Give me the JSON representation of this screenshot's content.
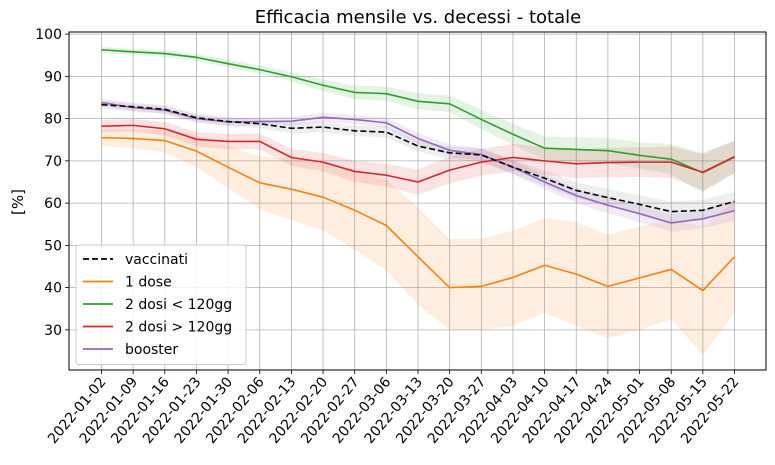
{
  "chart_data": {
    "type": "line",
    "title": "Efficacia mensile vs. decessi - totale",
    "xlabel": "",
    "ylabel": "[%]",
    "ylim": [
      20.5,
      100.5
    ],
    "yticks": [
      30,
      40,
      50,
      60,
      70,
      80,
      90,
      100
    ],
    "grid": true,
    "legend_position": "lower-left",
    "categories": [
      "2022-01-02",
      "2022-01-09",
      "2022-01-16",
      "2022-01-23",
      "2022-01-30",
      "2022-02-06",
      "2022-02-13",
      "2022-02-20",
      "2022-02-27",
      "2022-03-06",
      "2022-03-13",
      "2022-03-20",
      "2022-03-27",
      "2022-04-03",
      "2022-04-10",
      "2022-04-17",
      "2022-04-24",
      "2022-05-01",
      "2022-05-08",
      "2022-05-15",
      "2022-05-22"
    ],
    "series": [
      {
        "name": "vaccinati",
        "color": "#000000",
        "dash": "dashed",
        "band_color": "#7f7f7f",
        "values": [
          83.3,
          82.8,
          82.2,
          80.2,
          79.3,
          78.8,
          77.7,
          78.0,
          77.1,
          76.8,
          73.5,
          71.9,
          71.4,
          68.5,
          65.9,
          63.0,
          61.3,
          59.7,
          58.0,
          58.3,
          60.4
        ],
        "lower": [
          82.3,
          81.8,
          81.2,
          79.2,
          78.2,
          77.7,
          76.5,
          76.8,
          75.9,
          75.5,
          72.2,
          70.4,
          69.8,
          66.8,
          64.1,
          61.1,
          59.3,
          57.6,
          55.6,
          55.8,
          58.1
        ],
        "upper": [
          84.3,
          83.8,
          83.2,
          81.2,
          80.4,
          79.9,
          78.9,
          79.2,
          78.3,
          78.1,
          74.8,
          73.4,
          73.0,
          70.2,
          67.7,
          64.9,
          63.3,
          61.8,
          60.4,
          60.8,
          62.7
        ]
      },
      {
        "name": "1 dose",
        "color": "#ff7f0e",
        "dash": "solid",
        "band_color": "#ff7f0e",
        "values": [
          75.5,
          75.3,
          74.8,
          72.3,
          68.5,
          64.8,
          63.3,
          61.4,
          58.3,
          54.7,
          47.3,
          40.0,
          40.3,
          42.4,
          45.3,
          43.2,
          40.3,
          42.3,
          44.3,
          39.3,
          47.3
        ],
        "lower": [
          73.5,
          73.0,
          72.0,
          68.5,
          63.5,
          58.5,
          56.0,
          53.5,
          49.0,
          44.0,
          36.0,
          30.0,
          30.0,
          31.0,
          34.0,
          31.0,
          28.0,
          30.0,
          32.5,
          24.0,
          34.0
        ],
        "upper": [
          77.5,
          77.5,
          77.5,
          76.0,
          73.5,
          71.0,
          70.5,
          69.5,
          67.5,
          65.5,
          59.0,
          51.5,
          51.5,
          53.5,
          56.5,
          55.5,
          52.5,
          54.5,
          56.0,
          54.5,
          60.5
        ]
      },
      {
        "name": "2 dosi < 120gg",
        "color": "#2ca02c",
        "dash": "solid",
        "band_color": "#2ca02c",
        "values": [
          96.3,
          95.8,
          95.4,
          94.5,
          93.0,
          91.6,
          89.9,
          87.9,
          86.2,
          85.9,
          84.1,
          83.5,
          79.8,
          76.3,
          73.0,
          72.7,
          72.4,
          71.3,
          70.4,
          67.2,
          70.9
        ],
        "lower": [
          95.6,
          95.1,
          94.6,
          93.7,
          92.1,
          90.6,
          88.8,
          86.5,
          84.6,
          84.2,
          82.2,
          81.5,
          77.5,
          73.8,
          70.2,
          69.8,
          69.4,
          68.2,
          66.8,
          62.5,
          67.0
        ],
        "upper": [
          97.0,
          96.5,
          96.2,
          95.3,
          93.9,
          92.6,
          91.0,
          89.3,
          87.8,
          87.6,
          86.0,
          85.5,
          82.1,
          78.8,
          75.8,
          75.6,
          75.4,
          74.4,
          74.0,
          71.9,
          74.8
        ]
      },
      {
        "name": "2 dosi > 120gg",
        "color": "#d62728",
        "dash": "solid",
        "band_color": "#d62728",
        "values": [
          78.2,
          78.4,
          77.6,
          75.1,
          74.6,
          74.6,
          70.8,
          69.7,
          67.5,
          66.6,
          65.0,
          67.8,
          69.7,
          70.8,
          70.0,
          69.3,
          69.6,
          69.7,
          69.7,
          67.3,
          71.0
        ],
        "lower": [
          76.7,
          76.9,
          76.0,
          73.4,
          72.8,
          72.7,
          68.8,
          67.5,
          65.0,
          63.9,
          62.0,
          64.6,
          66.5,
          67.6,
          66.7,
          65.9,
          66.1,
          66.2,
          66.0,
          63.0,
          67.2
        ],
        "upper": [
          79.7,
          79.9,
          79.2,
          76.8,
          76.4,
          76.5,
          72.8,
          71.9,
          70.0,
          69.3,
          68.0,
          71.0,
          72.9,
          74.0,
          73.3,
          72.7,
          73.1,
          73.2,
          73.4,
          71.6,
          74.8
        ]
      },
      {
        "name": "booster",
        "color": "#9467bd",
        "dash": "solid",
        "band_color": "#9467bd",
        "values": [
          83.8,
          82.6,
          82.0,
          80.0,
          79.2,
          79.3,
          79.4,
          80.3,
          79.8,
          79.0,
          75.3,
          72.5,
          71.5,
          68.5,
          65.0,
          61.8,
          59.5,
          57.5,
          55.3,
          56.3,
          58.2
        ],
        "lower": [
          82.9,
          81.7,
          81.1,
          79.1,
          78.3,
          78.3,
          78.4,
          79.2,
          78.7,
          77.8,
          74.0,
          71.1,
          70.0,
          66.9,
          63.3,
          60.0,
          57.6,
          55.5,
          53.2,
          54.1,
          55.8
        ],
        "upper": [
          84.7,
          83.5,
          82.9,
          80.9,
          80.1,
          80.3,
          80.4,
          81.4,
          80.9,
          80.2,
          76.6,
          73.9,
          73.0,
          70.1,
          66.7,
          63.6,
          61.4,
          59.5,
          57.4,
          58.5,
          60.6
        ]
      }
    ]
  }
}
